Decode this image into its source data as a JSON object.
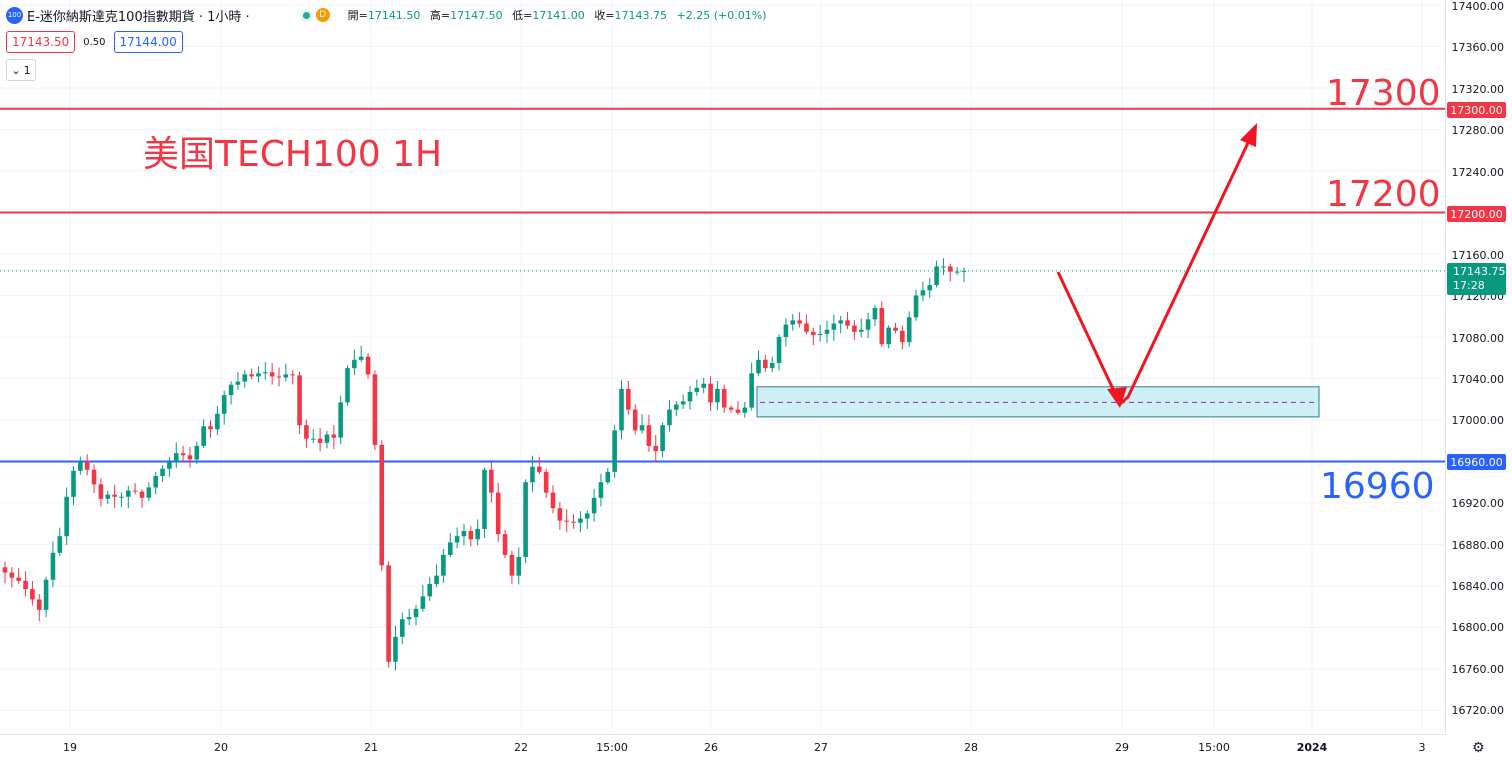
{
  "header": {
    "symbol_badge": "100",
    "title": "E-迷你納斯達克100指數期貨 · 1小時 ·",
    "status_badge": "D",
    "ohlc": {
      "open_label": "開=",
      "open": "17141.50",
      "high_label": "高=",
      "high": "17147.50",
      "low_label": "低=",
      "low": "17141.00",
      "close_label": "收=",
      "close": "17143.75",
      "change": "+2.25 (+0.01%)"
    },
    "sell_price": "17143.50",
    "spread": "0.50",
    "buy_price": "17144.00",
    "collapse_count": "1"
  },
  "annotations": {
    "title_text": "美国TECH100 1H",
    "level_17300": "17300",
    "level_17200": "17200",
    "level_16960": "16960"
  },
  "price_tags": {
    "tag_17300": "17300.00",
    "tag_17200": "17200.00",
    "tag_16960": "16960.00",
    "current_price": "17143.75",
    "countdown": "17:28"
  },
  "colors": {
    "up": "#089981",
    "down": "#f23645",
    "resistance": "#f23645",
    "support": "#2962ff",
    "zone_fill": "#bfe9f3",
    "arrow": "#f2141e"
  },
  "chart_data": {
    "type": "candlestick",
    "y_ticks": [
      "17400.00",
      "17360.00",
      "17320.00",
      "17280.00",
      "17240.00",
      "17160.00",
      "17120.00",
      "17080.00",
      "17040.00",
      "17000.00",
      "16920.00",
      "16880.00",
      "16840.00",
      "16800.00",
      "16760.00",
      "16720.00"
    ],
    "x_ticks": [
      "19",
      "20",
      "21",
      "22",
      "15:00",
      "26",
      "27",
      "28",
      "29",
      "15:00",
      "2024",
      "3"
    ],
    "ylim": [
      16705,
      17410
    ],
    "horizontal_lines": [
      {
        "price": 17300,
        "color": "#f23645"
      },
      {
        "price": 17200,
        "color": "#f23645"
      },
      {
        "price": 16960,
        "color": "#2962ff"
      }
    ],
    "zone": {
      "from": 17003,
      "to": 17032,
      "mid": 17017
    },
    "current_price": 17143.75,
    "forecast_path": [
      {
        "x": "28 14:00",
        "y": 17140
      },
      {
        "x": "29 00:00",
        "y": 17015
      },
      {
        "x": "29 06:00",
        "y": 17010
      },
      {
        "x": "29 22:00",
        "y": 17290
      }
    ],
    "closes": [
      16853,
      16848,
      16845,
      16837,
      16827,
      16817,
      16846,
      16872,
      16888,
      16926,
      16951,
      16960,
      16952,
      16938,
      16924,
      16928,
      16926,
      16926,
      16932,
      16931,
      16925,
      16935,
      16946,
      16953,
      16959,
      16968,
      16966,
      16962,
      16975,
      16994,
      16991,
      17006,
      17024,
      17034,
      17037,
      17044,
      17042,
      17045,
      17046,
      17042,
      17041,
      17044,
      17043,
      16995,
      16982,
      16982,
      16978,
      16986,
      16983,
      17017,
      17050,
      17058,
      17061,
      17044,
      16976,
      16860,
      16767,
      16791,
      16808,
      16810,
      16818,
      16830,
      16842,
      16850,
      16870,
      16882,
      16888,
      16893,
      16885,
      16895,
      16952,
      16930,
      16890,
      16870,
      16850,
      16868,
      16940,
      16955,
      16950,
      16930,
      16915,
      16903,
      16902,
      16901,
      16905,
      16910,
      16925,
      16940,
      16950,
      16990,
      17030,
      17010,
      16990,
      16995,
      16975,
      16970,
      16995,
      17010,
      17015,
      17018,
      17027,
      17031,
      17035,
      17017,
      17030,
      17012,
      17010,
      17007,
      17012,
      17045,
      17058,
      17050,
      17055,
      17080,
      17092,
      17096,
      17093,
      17085,
      17082,
      17083,
      17087,
      17093,
      17096,
      17091,
      17085,
      17087,
      17097,
      17108,
      17073,
      17089,
      17086,
      17075,
      17099,
      17120,
      17125,
      17130,
      17148,
      17148,
      17143,
      17143,
      17143.75
    ]
  }
}
